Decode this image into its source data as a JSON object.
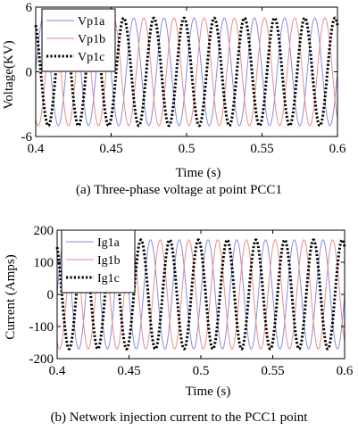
{
  "figure": {
    "caption_a": "(a) Three-phase voltage at point PCC1",
    "caption_b": "(b) Network injection current to the PCC1 point"
  },
  "chart_data": [
    {
      "type": "line",
      "title": "",
      "xlabel": "Time (s)",
      "ylabel": "Voltage(KV)",
      "xlim": [
        0.4,
        0.6
      ],
      "ylim": [
        -6,
        6
      ],
      "x_ticks": [
        0.4,
        0.45,
        0.5,
        0.55,
        0.6
      ],
      "x_tick_labels": [
        "0.4",
        "0.45",
        "0.5",
        "0.55",
        "0.6"
      ],
      "y_ticks": [
        -6,
        0,
        6
      ],
      "y_tick_labels": [
        "-6",
        "0",
        "6"
      ],
      "grid": false,
      "legend_position": "top-left",
      "signal": {
        "frequency_hz": 50,
        "amplitude": 5.0,
        "phase_shift_deg": 120
      },
      "series": [
        {
          "name": "Vp1a",
          "color": "#8a8ae6",
          "style": "solid",
          "phase_deg": 0
        },
        {
          "name": "Vp1b",
          "color": "#ee8a8a",
          "style": "solid",
          "phase_deg": -120
        },
        {
          "name": "Vp1c",
          "color": "#000000",
          "style": "dotted",
          "phase_deg": 120
        }
      ]
    },
    {
      "type": "line",
      "title": "",
      "xlabel": "Time (s)",
      "ylabel": "Current (Amps)",
      "xlim": [
        0.4,
        0.6
      ],
      "ylim": [
        -200,
        200
      ],
      "x_ticks": [
        0.4,
        0.45,
        0.5,
        0.55,
        0.6
      ],
      "x_tick_labels": [
        "0.4",
        "0.45",
        "0.5",
        "0.55",
        "0.6"
      ],
      "y_ticks": [
        -200,
        -100,
        0,
        100,
        200
      ],
      "y_tick_labels": [
        "-200",
        "-100",
        "0",
        "100",
        "200"
      ],
      "grid": false,
      "legend_position": "top-left",
      "signal": {
        "frequency_hz": 50,
        "amplitude": 170,
        "phase_shift_deg": 120
      },
      "series": [
        {
          "name": "Ig1a",
          "color": "#8a8ae6",
          "style": "solid",
          "phase_deg": 0
        },
        {
          "name": "Ig1b",
          "color": "#ee8a8a",
          "style": "solid",
          "phase_deg": -120
        },
        {
          "name": "Ig1c",
          "color": "#000000",
          "style": "dotted",
          "phase_deg": 120
        }
      ]
    }
  ]
}
